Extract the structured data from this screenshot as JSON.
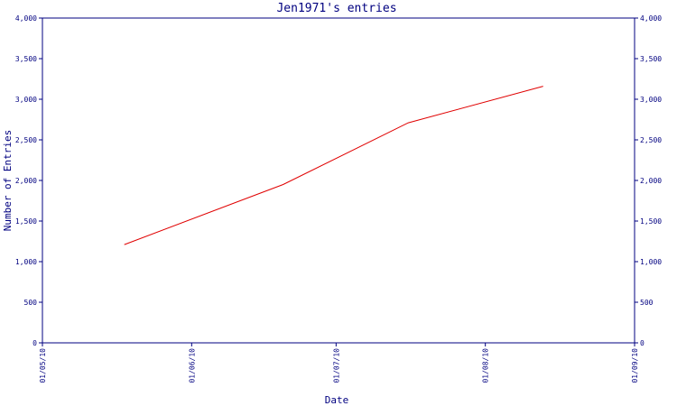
{
  "chart_data": {
    "type": "line",
    "title": "Jen1971's entries",
    "xlabel": "Date",
    "ylabel": "Number of Entries",
    "x_ticks": [
      "01/05/10",
      "01/06/10",
      "01/07/10",
      "01/08/10",
      "01/09/10"
    ],
    "y_ticks": [
      "0",
      "500",
      "1,000",
      "1,500",
      "2,000",
      "2,500",
      "3,000",
      "3,500",
      "4,000"
    ],
    "ylim": [
      0,
      4000
    ],
    "xlim": [
      "2010-05-01",
      "2010-09-01"
    ],
    "right_axis": true,
    "grid": false,
    "series": [
      {
        "color": "#e00000",
        "points": [
          {
            "x": "2010-05-18",
            "y": 1210
          },
          {
            "x": "2010-06-20",
            "y": 1950
          },
          {
            "x": "2010-07-16",
            "y": 2710
          },
          {
            "x": "2010-08-13",
            "y": 3160
          }
        ]
      }
    ]
  }
}
